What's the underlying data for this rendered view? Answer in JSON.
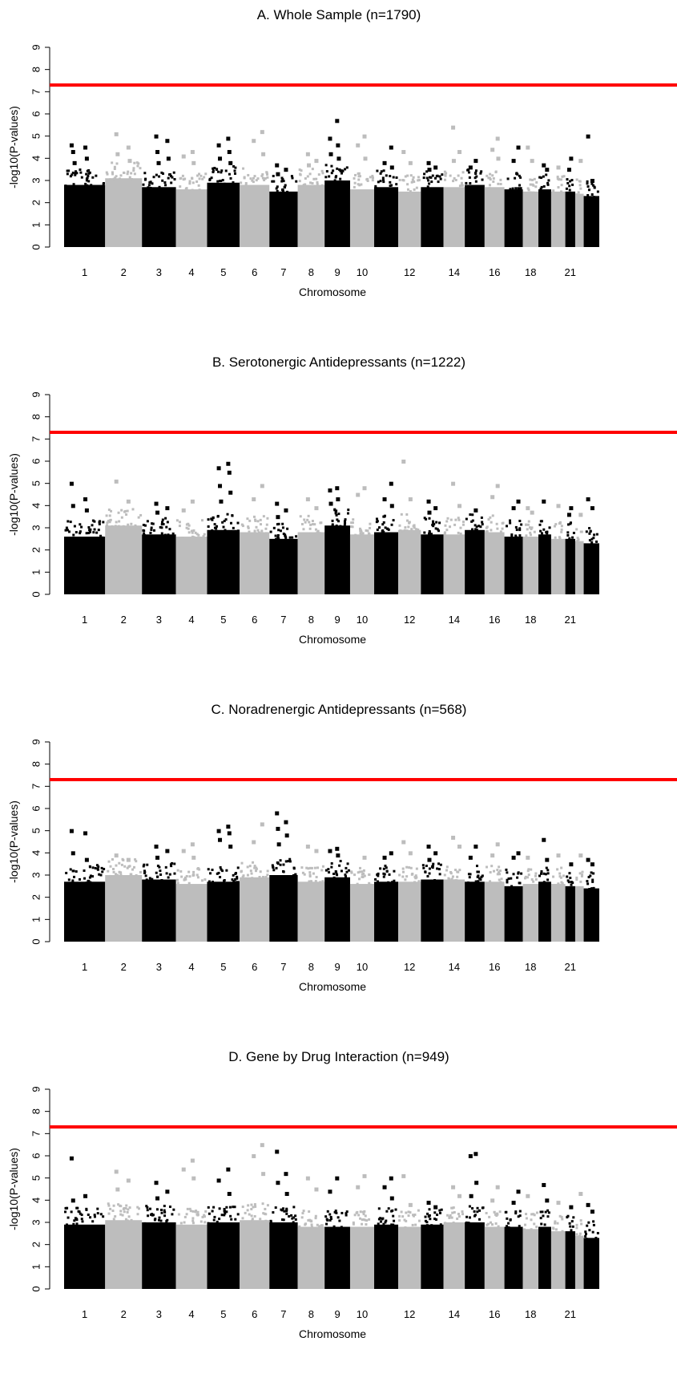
{
  "chart_data": [
    {
      "type": "scatter",
      "title": "A. Whole Sample (n=1790)",
      "xlabel": "Chromosome",
      "ylabel": "-log10(P-values)",
      "ylim": [
        0,
        9
      ],
      "y_ticks": [
        "0",
        "1",
        "2",
        "3",
        "4",
        "5",
        "6",
        "7",
        "8",
        "9"
      ],
      "x_tick_labels": [
        "1",
        "2",
        "3",
        "4",
        "5",
        "6",
        "7",
        "8",
        "9",
        "10",
        "12",
        "14",
        "16",
        "18",
        "21"
      ],
      "significance_threshold": 7.3,
      "series": [
        {
          "chromosome": 1,
          "base_max": 3.3,
          "top_hits": [
            4.6,
            4.5,
            4.3,
            4.0,
            3.8
          ]
        },
        {
          "chromosome": 2,
          "base_max": 3.6,
          "top_hits": [
            5.1,
            4.5,
            4.2,
            3.9
          ]
        },
        {
          "chromosome": 3,
          "base_max": 3.2,
          "top_hits": [
            5.0,
            4.8,
            4.3,
            4.0,
            3.8
          ]
        },
        {
          "chromosome": 4,
          "base_max": 3.1,
          "top_hits": [
            4.3,
            4.1,
            3.8
          ]
        },
        {
          "chromosome": 5,
          "base_max": 3.4,
          "top_hits": [
            4.9,
            4.6,
            4.3,
            4.0,
            3.8
          ]
        },
        {
          "chromosome": 6,
          "base_max": 3.3,
          "top_hits": [
            5.2,
            4.8,
            4.2
          ]
        },
        {
          "chromosome": 7,
          "base_max": 3.0,
          "top_hits": [
            3.7,
            3.5,
            3.3
          ]
        },
        {
          "chromosome": 8,
          "base_max": 3.3,
          "top_hits": [
            4.2,
            3.9,
            3.7
          ]
        },
        {
          "chromosome": 9,
          "base_max": 3.5,
          "top_hits": [
            5.7,
            4.9,
            4.6,
            4.2,
            4.0
          ]
        },
        {
          "chromosome": 10,
          "base_max": 3.1,
          "top_hits": [
            5.0,
            4.6,
            4.0
          ]
        },
        {
          "chromosome": 11,
          "base_max": 3.2,
          "top_hits": [
            4.5,
            3.8,
            3.6
          ]
        },
        {
          "chromosome": 12,
          "base_max": 3.0,
          "top_hits": [
            4.3,
            3.8
          ]
        },
        {
          "chromosome": 13,
          "base_max": 3.2,
          "top_hits": [
            3.8,
            3.6,
            3.5
          ]
        },
        {
          "chromosome": 14,
          "base_max": 3.2,
          "top_hits": [
            5.4,
            4.3,
            3.9
          ]
        },
        {
          "chromosome": 15,
          "base_max": 3.3,
          "top_hits": [
            3.9,
            3.6
          ]
        },
        {
          "chromosome": 16,
          "base_max": 3.2,
          "top_hits": [
            4.9,
            4.4,
            4.0
          ]
        },
        {
          "chromosome": 17,
          "base_max": 3.1,
          "top_hits": [
            4.5,
            3.9
          ]
        },
        {
          "chromosome": 18,
          "base_max": 3.0,
          "top_hits": [
            4.5,
            3.9
          ]
        },
        {
          "chromosome": 19,
          "base_max": 3.1,
          "top_hits": [
            3.7,
            3.5
          ]
        },
        {
          "chromosome": 20,
          "base_max": 3.0,
          "top_hits": [
            3.6
          ]
        },
        {
          "chromosome": 21,
          "base_max": 3.0,
          "top_hits": [
            4.0,
            3.5
          ]
        },
        {
          "chromosome": 22,
          "base_max": 2.9,
          "top_hits": [
            3.9
          ]
        },
        {
          "chromosome": 23,
          "base_max": 2.8,
          "top_hits": [
            5.0,
            3.0
          ]
        }
      ]
    },
    {
      "type": "scatter",
      "title": "B. Serotonergic Antidepressants (n=1222)",
      "xlabel": "Chromosome",
      "ylabel": "-log10(P-values)",
      "ylim": [
        0,
        9
      ],
      "y_ticks": [
        "0",
        "1",
        "2",
        "3",
        "4",
        "5",
        "6",
        "7",
        "8",
        "9"
      ],
      "x_tick_labels": [
        "1",
        "2",
        "3",
        "4",
        "5",
        "6",
        "7",
        "8",
        "9",
        "10",
        "12",
        "14",
        "16",
        "18",
        "21"
      ],
      "significance_threshold": 7.3,
      "series": [
        {
          "chromosome": 1,
          "base_max": 3.1,
          "top_hits": [
            5.0,
            4.3,
            4.0,
            3.8
          ]
        },
        {
          "chromosome": 2,
          "base_max": 3.6,
          "top_hits": [
            5.1,
            4.2
          ]
        },
        {
          "chromosome": 3,
          "base_max": 3.2,
          "top_hits": [
            4.1,
            3.9,
            3.7
          ]
        },
        {
          "chromosome": 4,
          "base_max": 3.1,
          "top_hits": [
            4.2,
            3.8
          ]
        },
        {
          "chromosome": 5,
          "base_max": 3.4,
          "top_hits": [
            5.9,
            5.7,
            5.5,
            4.9,
            4.6,
            4.2
          ]
        },
        {
          "chromosome": 6,
          "base_max": 3.3,
          "top_hits": [
            4.9,
            4.3
          ]
        },
        {
          "chromosome": 7,
          "base_max": 3.0,
          "top_hits": [
            4.1,
            3.8,
            3.5
          ]
        },
        {
          "chromosome": 8,
          "base_max": 3.3,
          "top_hits": [
            4.3,
            3.9
          ]
        },
        {
          "chromosome": 9,
          "base_max": 3.6,
          "top_hits": [
            4.8,
            4.7,
            4.3,
            4.1
          ]
        },
        {
          "chromosome": 10,
          "base_max": 3.2,
          "top_hits": [
            4.8,
            4.5
          ]
        },
        {
          "chromosome": 11,
          "base_max": 3.3,
          "top_hits": [
            5.0,
            4.3,
            4.0
          ]
        },
        {
          "chromosome": 12,
          "base_max": 3.4,
          "top_hits": [
            6.0,
            4.3
          ]
        },
        {
          "chromosome": 13,
          "base_max": 3.2,
          "top_hits": [
            4.2,
            3.9,
            3.7
          ]
        },
        {
          "chromosome": 14,
          "base_max": 3.2,
          "top_hits": [
            5.0,
            4.0
          ]
        },
        {
          "chromosome": 15,
          "base_max": 3.4,
          "top_hits": [
            3.8
          ]
        },
        {
          "chromosome": 16,
          "base_max": 3.3,
          "top_hits": [
            4.9,
            4.4
          ]
        },
        {
          "chromosome": 17,
          "base_max": 3.1,
          "top_hits": [
            4.2,
            3.9
          ]
        },
        {
          "chromosome": 18,
          "base_max": 3.1,
          "top_hits": [
            3.9,
            3.7
          ]
        },
        {
          "chromosome": 19,
          "base_max": 3.2,
          "top_hits": [
            4.2
          ]
        },
        {
          "chromosome": 20,
          "base_max": 3.0,
          "top_hits": [
            4.0
          ]
        },
        {
          "chromosome": 21,
          "base_max": 3.0,
          "top_hits": [
            3.9,
            3.6
          ]
        },
        {
          "chromosome": 22,
          "base_max": 2.9,
          "top_hits": [
            3.6
          ]
        },
        {
          "chromosome": 23,
          "base_max": 2.8,
          "top_hits": [
            4.3,
            3.9
          ]
        }
      ]
    },
    {
      "type": "scatter",
      "title": "C. Noradrenergic Antidepressants (n=568)",
      "xlabel": "Chromosome",
      "ylabel": "-log10(P-values)",
      "ylim": [
        0,
        9
      ],
      "y_ticks": [
        "0",
        "1",
        "2",
        "3",
        "4",
        "5",
        "6",
        "7",
        "8",
        "9"
      ],
      "x_tick_labels": [
        "1",
        "2",
        "3",
        "4",
        "5",
        "6",
        "7",
        "8",
        "9",
        "10",
        "12",
        "14",
        "16",
        "18",
        "21"
      ],
      "significance_threshold": 7.3,
      "series": [
        {
          "chromosome": 1,
          "base_max": 3.2,
          "top_hits": [
            5.0,
            4.9,
            4.0,
            3.7
          ]
        },
        {
          "chromosome": 2,
          "base_max": 3.5,
          "top_hits": [
            3.9,
            3.7
          ]
        },
        {
          "chromosome": 3,
          "base_max": 3.3,
          "top_hits": [
            4.3,
            4.1,
            3.8
          ]
        },
        {
          "chromosome": 4,
          "base_max": 3.1,
          "top_hits": [
            4.4,
            4.1,
            3.8
          ]
        },
        {
          "chromosome": 5,
          "base_max": 3.2,
          "top_hits": [
            5.2,
            5.0,
            4.9,
            4.6,
            4.3
          ]
        },
        {
          "chromosome": 6,
          "base_max": 3.4,
          "top_hits": [
            5.3,
            4.5
          ]
        },
        {
          "chromosome": 7,
          "base_max": 3.5,
          "top_hits": [
            5.8,
            5.4,
            5.1,
            4.8,
            4.4
          ]
        },
        {
          "chromosome": 8,
          "base_max": 3.2,
          "top_hits": [
            4.3,
            4.1
          ]
        },
        {
          "chromosome": 9,
          "base_max": 3.4,
          "top_hits": [
            4.2,
            4.1,
            3.9
          ]
        },
        {
          "chromosome": 10,
          "base_max": 3.1,
          "top_hits": [
            3.8
          ]
        },
        {
          "chromosome": 11,
          "base_max": 3.2,
          "top_hits": [
            4.0,
            3.8
          ]
        },
        {
          "chromosome": 12,
          "base_max": 3.2,
          "top_hits": [
            4.5,
            4.0
          ]
        },
        {
          "chromosome": 13,
          "base_max": 3.3,
          "top_hits": [
            4.3,
            4.0,
            3.7
          ]
        },
        {
          "chromosome": 14,
          "base_max": 3.3,
          "top_hits": [
            4.7,
            4.3
          ]
        },
        {
          "chromosome": 15,
          "base_max": 3.2,
          "top_hits": [
            4.3,
            3.8
          ]
        },
        {
          "chromosome": 16,
          "base_max": 3.2,
          "top_hits": [
            4.4,
            3.9
          ]
        },
        {
          "chromosome": 17,
          "base_max": 3.0,
          "top_hits": [
            4.0,
            3.8
          ]
        },
        {
          "chromosome": 18,
          "base_max": 3.1,
          "top_hits": [
            3.8
          ]
        },
        {
          "chromosome": 19,
          "base_max": 3.2,
          "top_hits": [
            4.6,
            3.7
          ]
        },
        {
          "chromosome": 20,
          "base_max": 3.1,
          "top_hits": [
            3.9
          ]
        },
        {
          "chromosome": 21,
          "base_max": 3.0,
          "top_hits": [
            3.5
          ]
        },
        {
          "chromosome": 22,
          "base_max": 3.0,
          "top_hits": [
            3.9
          ]
        },
        {
          "chromosome": 23,
          "base_max": 2.9,
          "top_hits": [
            3.7,
            3.5
          ]
        }
      ]
    },
    {
      "type": "scatter",
      "title": "D. Gene by Drug Interaction (n=949)",
      "xlabel": "Chromosome",
      "ylabel": "-log10(P-values)",
      "ylim": [
        0,
        9
      ],
      "y_ticks": [
        "0",
        "1",
        "2",
        "3",
        "4",
        "5",
        "6",
        "7",
        "8",
        "9"
      ],
      "x_tick_labels": [
        "1",
        "2",
        "3",
        "4",
        "5",
        "6",
        "7",
        "8",
        "9",
        "10",
        "12",
        "14",
        "16",
        "18",
        "21"
      ],
      "significance_threshold": 7.3,
      "series": [
        {
          "chromosome": 1,
          "base_max": 3.4,
          "top_hits": [
            5.9,
            4.2,
            4.0
          ]
        },
        {
          "chromosome": 2,
          "base_max": 3.6,
          "top_hits": [
            5.3,
            4.9,
            4.5
          ]
        },
        {
          "chromosome": 3,
          "base_max": 3.5,
          "top_hits": [
            4.8,
            4.4,
            4.1
          ]
        },
        {
          "chromosome": 4,
          "base_max": 3.4,
          "top_hits": [
            5.8,
            5.4,
            5.0
          ]
        },
        {
          "chromosome": 5,
          "base_max": 3.5,
          "top_hits": [
            5.4,
            4.9,
            4.3
          ]
        },
        {
          "chromosome": 6,
          "base_max": 3.6,
          "top_hits": [
            6.5,
            6.0,
            5.2
          ]
        },
        {
          "chromosome": 7,
          "base_max": 3.5,
          "top_hits": [
            6.2,
            5.2,
            4.8,
            4.3
          ]
        },
        {
          "chromosome": 8,
          "base_max": 3.3,
          "top_hits": [
            5.0,
            4.5
          ]
        },
        {
          "chromosome": 9,
          "base_max": 3.3,
          "top_hits": [
            5.0,
            4.4
          ]
        },
        {
          "chromosome": 10,
          "base_max": 3.3,
          "top_hits": [
            5.1,
            4.6
          ]
        },
        {
          "chromosome": 11,
          "base_max": 3.4,
          "top_hits": [
            5.0,
            4.6,
            4.1
          ]
        },
        {
          "chromosome": 12,
          "base_max": 3.3,
          "top_hits": [
            5.1,
            3.8
          ]
        },
        {
          "chromosome": 13,
          "base_max": 3.4,
          "top_hits": [
            3.9,
            3.7
          ]
        },
        {
          "chromosome": 14,
          "base_max": 3.5,
          "top_hits": [
            4.6,
            4.2
          ]
        },
        {
          "chromosome": 15,
          "base_max": 3.5,
          "top_hits": [
            6.1,
            6.0,
            4.8,
            4.2
          ]
        },
        {
          "chromosome": 16,
          "base_max": 3.3,
          "top_hits": [
            4.6,
            4.0
          ]
        },
        {
          "chromosome": 17,
          "base_max": 3.3,
          "top_hits": [
            4.4,
            3.9
          ]
        },
        {
          "chromosome": 18,
          "base_max": 3.2,
          "top_hits": [
            4.2
          ]
        },
        {
          "chromosome": 19,
          "base_max": 3.3,
          "top_hits": [
            4.7,
            4.0
          ]
        },
        {
          "chromosome": 20,
          "base_max": 3.1,
          "top_hits": [
            3.9
          ]
        },
        {
          "chromosome": 21,
          "base_max": 3.1,
          "top_hits": [
            3.7
          ]
        },
        {
          "chromosome": 22,
          "base_max": 2.9,
          "top_hits": [
            4.3
          ]
        },
        {
          "chromosome": 23,
          "base_max": 2.8,
          "top_hits": [
            3.8,
            3.5
          ]
        }
      ]
    }
  ],
  "colors": {
    "odd_chromosome": "#000000",
    "even_chromosome": "#bdbdbd",
    "threshold_line": "#ff0000",
    "axis": "#000000"
  }
}
